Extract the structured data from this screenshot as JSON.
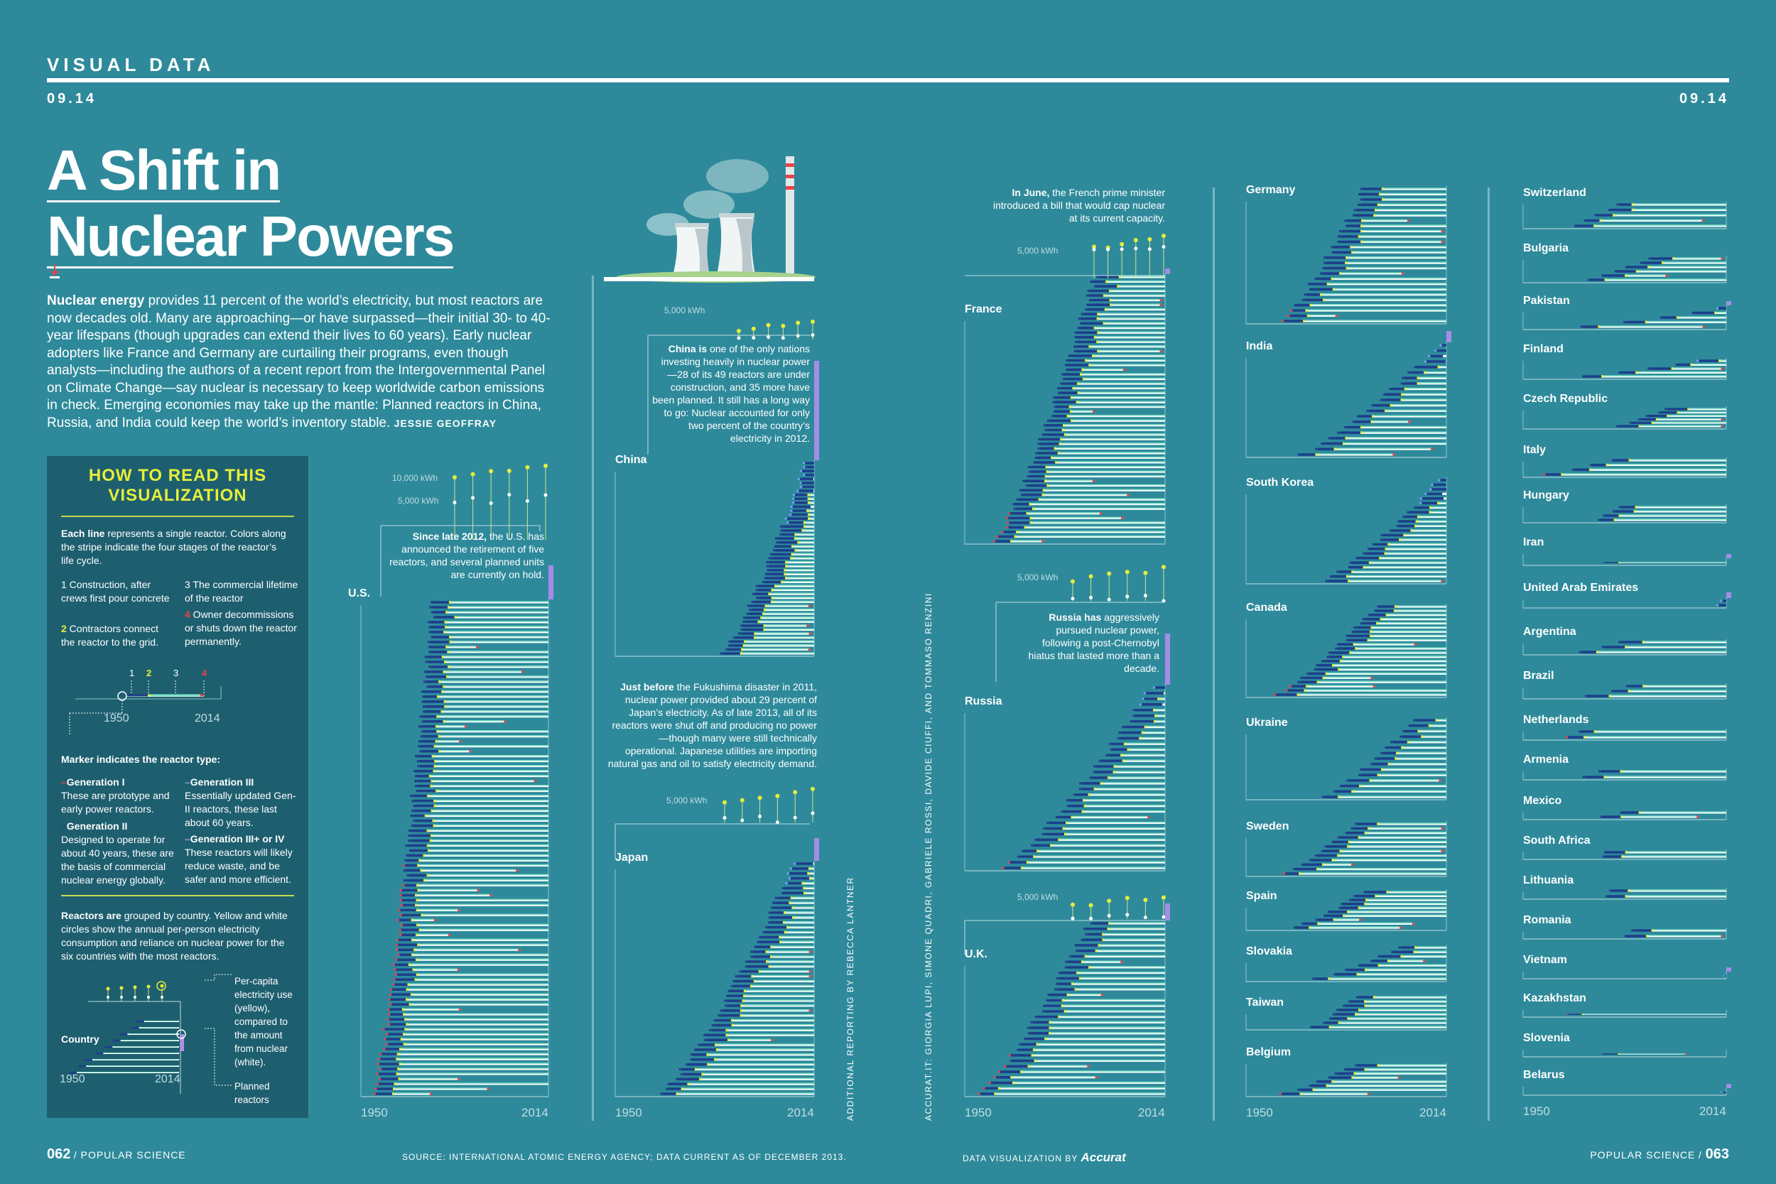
{
  "header": {
    "kicker": "VISUAL DATA",
    "issue_left": "09.14",
    "issue_right": "09.14"
  },
  "title_line1": "A Shift in",
  "title_line2": "Nuclear Powers",
  "intro": {
    "lead": "Nuclear energy",
    "body": " provides 11 percent of the world’s electricity, but most reactors are now decades old. Many are approaching—or have surpassed—their initial 30- to 40-year lifespans (though upgrades can extend their lives to 60 years). Early nuclear adopters like France and Germany are curtailing their programs, even though analysts—including the authors of a recent report from the Intergovernmental Panel on Climate Change—say nuclear is necessary to keep worldwide carbon emissions in check. Emerging economies may take up the mantle: Planned reactors in China, Russia, and India could keep the world’s inventory stable. ",
    "byline": "JESSIE GEOFFRAY"
  },
  "howto": {
    "title_line1": "HOW TO READ THIS",
    "title_line2": "VISUALIZATION",
    "each_line_lead": "Each line",
    "each_line_body": " represents a single reactor. Colors along the stripe indicate the four stages of the reactor’s life cycle.",
    "step1_num": "1",
    "step1_text": " Construction, after crews first pour concrete",
    "step2_num": "2",
    "step2_text": " Contractors connect the reactor to the grid.",
    "step3_num": "3",
    "step3_text": " The commercial lifetime of the reactor",
    "step4_num": "4",
    "step4_text": " Owner decommissions or shuts down the reactor permanently.",
    "diagram_nums": [
      "1",
      "2",
      "3",
      "4"
    ],
    "diagram_start": "1950",
    "diagram_end": "2014",
    "marker_heading": "Marker indicates the reactor type:",
    "gen1_title": "Generation I",
    "gen1_text": "These are prototype and early power reactors.",
    "gen2_title": "Generation II",
    "gen2_text": "Designed to operate for about 40 years, these are the basis of commercial nuclear energy globally.",
    "gen3_title": "Generation III",
    "gen3_text": "Essentially updated Gen-II reactors, these last about 60 years.",
    "gen3p_title": "Generation III+ or IV",
    "gen3p_text": "These reactors will likely reduce waste, and be safer and more efficient.",
    "grouped_lead": "Reactors are",
    "grouped_body": " grouped by country. Yellow and white circles show the annual per-person electricity consumption and reliance on nuclear power for the six countries with the most reactors.",
    "legend_country": "Country",
    "legend_percap": "Per-capita electricity use (yellow), compared to the amount from nuclear (white).",
    "legend_planned": "Planned reactors",
    "legend_start": "1950",
    "legend_end": "2014"
  },
  "annotations": {
    "us_lead": "Since late 2012,",
    "us_body": " the U.S. has announced the retirement of five reactors, and several planned units are currently on hold.",
    "china_lead": "China is",
    "china_body": " one of the only nations investing heavily in nuclear power—28 of its 49 reactors are under construction, and 35 more have been planned. It still has a long way to go: Nuclear accounted for only two percent of the country’s electricity in 2012.",
    "japan_lead": "Just before",
    "japan_body": " the Fukushima disaster in 2011, nuclear power provided about 29 percent of Japan’s electricity. As of late 2013, all of its reactors were shut off and producing no power—though many were still technically operational. Japanese utilities are importing natural gas and oil to satisfy electricity demand.",
    "france_lead": "In June,",
    "france_body": " the French prime minister introduced a bill that would cap nuclear at its current capacity.",
    "russia_lead": "Russia has",
    "russia_body": " aggressively pursued nuclear power, following a post-Chernobyl hiatus that lasted more than a decade."
  },
  "kwh_labels": {
    "us_top": "10,000 kWh",
    "us_mid": "5,000 kWh",
    "china": "5,000 kWh",
    "japan": "5,000 kWh",
    "france": "5,000 kWh",
    "russia": "5,000 kWh",
    "uk": "5,000 kWh"
  },
  "axis": {
    "start": "1950",
    "end": "2014"
  },
  "credits": {
    "reporting": "ADDITIONAL REPORTING BY REBECCA LANTNER",
    "accurat": "ACCURAT.IT: GIORGIA LUPI, SIMONE QUADRI, GABRIELE ROSSI, DAVIDE CIUFFI, AND TOMMASO RENZINI"
  },
  "footer": {
    "page_left": "062",
    "mag_left": "POPULAR SCIENCE",
    "source": "SOURCE: INTERNATIONAL ATOMIC ENERGY AGENCY; DATA CURRENT AS OF DECEMBER 2013.",
    "dataviz_prefix": "DATA VISUALIZATION BY ",
    "dataviz_brand": "Accurat",
    "mag_right": "POPULAR SCIENCE",
    "page_right": "063"
  },
  "colors": {
    "background": "#2e8a9b",
    "construction": "#1c3f8a",
    "grid_connection": "#e6ef3a",
    "commercial": "#7fe0c6",
    "shutdown": "#e8424b",
    "line": "#ffffff",
    "planned": "#b38cf0"
  },
  "chart_data": {
    "type": "timeline",
    "x_range": [
      1950,
      2014
    ],
    "countries": [
      {
        "name": "U.S.",
        "reactors": 100
      },
      {
        "name": "China",
        "reactors": 49
      },
      {
        "name": "Japan",
        "reactors": 48
      },
      {
        "name": "France",
        "reactors": 58
      },
      {
        "name": "Russia",
        "reactors": 33
      },
      {
        "name": "U.K.",
        "reactors": 32
      },
      {
        "name": "Germany",
        "reactors": 26
      },
      {
        "name": "India",
        "reactors": 21
      },
      {
        "name": "South Korea",
        "reactors": 23
      },
      {
        "name": "Canada",
        "reactors": 22
      },
      {
        "name": "Ukraine",
        "reactors": 15
      },
      {
        "name": "Sweden",
        "reactors": 12
      },
      {
        "name": "Spain",
        "reactors": 10
      },
      {
        "name": "Slovakia",
        "reactors": 8
      },
      {
        "name": "Taiwan",
        "reactors": 8
      },
      {
        "name": "Belgium",
        "reactors": 8
      },
      {
        "name": "Switzerland",
        "reactors": 5
      },
      {
        "name": "Bulgaria",
        "reactors": 6
      },
      {
        "name": "Pakistan",
        "reactors": 5
      },
      {
        "name": "Finland",
        "reactors": 5
      },
      {
        "name": "Czech Republic",
        "reactors": 6
      },
      {
        "name": "Italy",
        "reactors": 4
      },
      {
        "name": "Hungary",
        "reactors": 4
      },
      {
        "name": "Iran",
        "reactors": 1
      },
      {
        "name": "United Arab Emirates",
        "reactors": 2
      },
      {
        "name": "Argentina",
        "reactors": 3
      },
      {
        "name": "Brazil",
        "reactors": 3
      },
      {
        "name": "Netherlands",
        "reactors": 2
      },
      {
        "name": "Armenia",
        "reactors": 2
      },
      {
        "name": "Mexico",
        "reactors": 2
      },
      {
        "name": "South Africa",
        "reactors": 2
      },
      {
        "name": "Lithuania",
        "reactors": 2
      },
      {
        "name": "Romania",
        "reactors": 2
      },
      {
        "name": "Vietnam",
        "reactors": 1
      },
      {
        "name": "Kazakhstan",
        "reactors": 1
      },
      {
        "name": "Slovenia",
        "reactors": 1
      },
      {
        "name": "Belarus",
        "reactors": 1
      }
    ]
  }
}
